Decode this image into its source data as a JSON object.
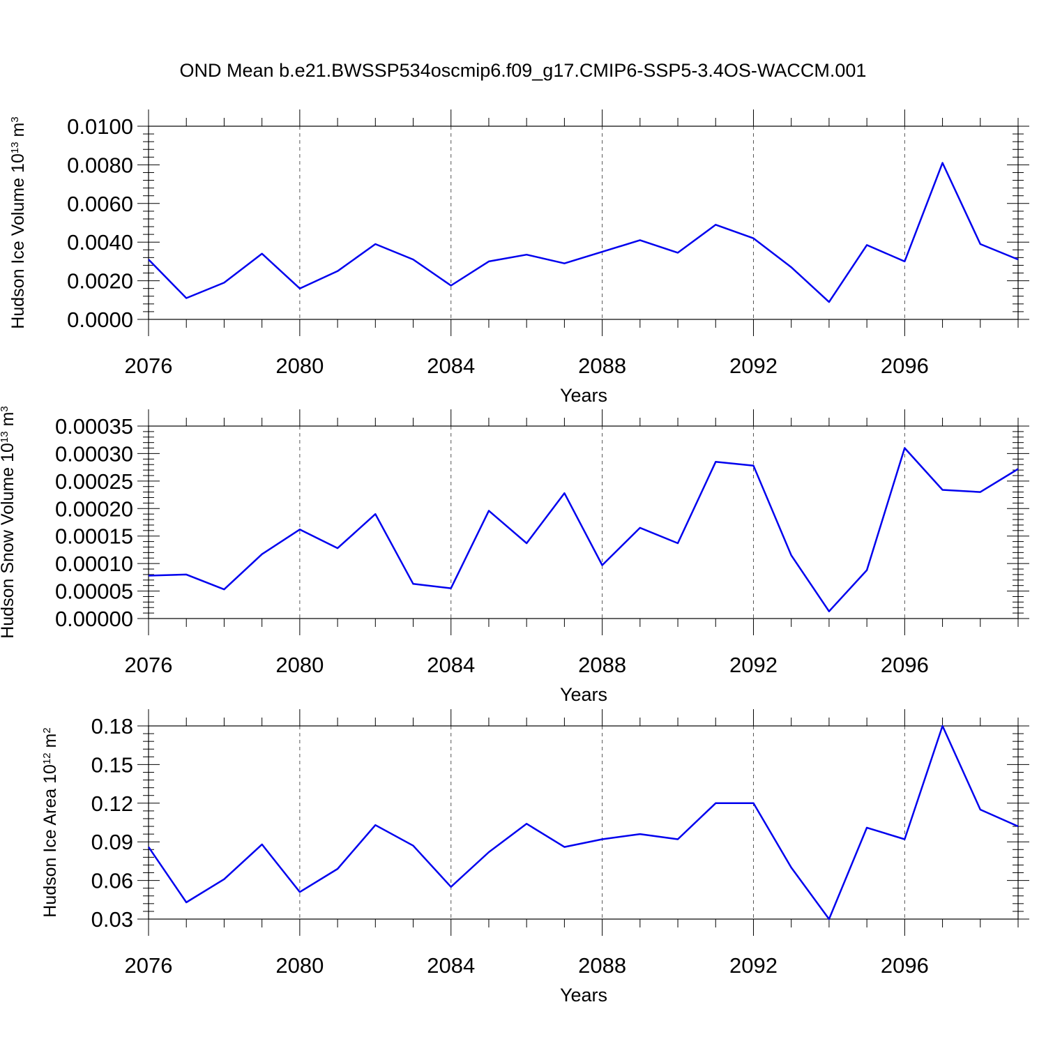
{
  "title": "OND Mean b.e21.BWSSP534oscmip6.f09_g17.CMIP6-SSP5-3.4OS-WACCM.001",
  "colors": {
    "series": "#0000ee",
    "axes": "#000000",
    "grid": "#555555"
  },
  "chart_data": [
    {
      "type": "line",
      "xlabel": "Years",
      "ylabel": "Hudson Ice Volume 10",
      "ylabel_exp": "13",
      "ylabel_unit": " m",
      "ylabel_unit_exp": "3",
      "xlim": [
        2076,
        2099
      ],
      "ylim": [
        0,
        0.01
      ],
      "x_ticks": [
        2076,
        2080,
        2084,
        2088,
        2092,
        2096
      ],
      "x_tick_labels": [
        "2076",
        "2080",
        "2084",
        "2088",
        "2092",
        "2096"
      ],
      "y_ticks": [
        0,
        0.002,
        0.004,
        0.006,
        0.008,
        0.01
      ],
      "y_tick_labels": [
        "0.0000",
        "0.0020",
        "0.0040",
        "0.0060",
        "0.0080",
        "0.0100"
      ],
      "x": [
        2076,
        2077,
        2078,
        2079,
        2080,
        2081,
        2082,
        2083,
        2084,
        2085,
        2086,
        2087,
        2088,
        2089,
        2090,
        2091,
        2092,
        2093,
        2094,
        2095,
        2096,
        2097,
        2098,
        2099
      ],
      "values": [
        0.0031,
        0.0011,
        0.0019,
        0.0034,
        0.0016,
        0.0025,
        0.0039,
        0.0031,
        0.00175,
        0.003,
        0.00335,
        0.0029,
        0.0035,
        0.0041,
        0.00345,
        0.0049,
        0.0042,
        0.0027,
        0.0009,
        0.00385,
        0.003,
        0.0081,
        0.0039,
        0.0031
      ]
    },
    {
      "type": "line",
      "xlabel": "Years",
      "ylabel": "Hudson Snow Volume 10",
      "ylabel_exp": "13",
      "ylabel_unit": " m",
      "ylabel_unit_exp": "3",
      "xlim": [
        2076,
        2099
      ],
      "ylim": [
        0,
        0.00035
      ],
      "x_ticks": [
        2076,
        2080,
        2084,
        2088,
        2092,
        2096
      ],
      "x_tick_labels": [
        "2076",
        "2080",
        "2084",
        "2088",
        "2092",
        "2096"
      ],
      "y_ticks": [
        0,
        5e-05,
        0.0001,
        0.00015,
        0.0002,
        0.00025,
        0.0003,
        0.00035
      ],
      "y_tick_labels": [
        "0.00000",
        "0.00005",
        "0.00010",
        "0.00015",
        "0.00020",
        "0.00025",
        "0.00030",
        "0.00035"
      ],
      "x": [
        2076,
        2077,
        2078,
        2079,
        2080,
        2081,
        2082,
        2083,
        2084,
        2085,
        2086,
        2087,
        2088,
        2089,
        2090,
        2091,
        2092,
        2093,
        2094,
        2095,
        2096,
        2097,
        2098,
        2099
      ],
      "values": [
        7.8e-05,
        8e-05,
        5.3e-05,
        0.000117,
        0.000162,
        0.000128,
        0.00019,
        6.3e-05,
        5.5e-05,
        0.000196,
        0.000137,
        0.000228,
        9.7e-05,
        0.000165,
        0.000137,
        0.000285,
        0.000278,
        0.000115,
        1.3e-05,
        8.8e-05,
        0.00031,
        0.000234,
        0.00023,
        0.000272
      ]
    },
    {
      "type": "line",
      "xlabel": "Years",
      "ylabel": "Hudson Ice Area 10",
      "ylabel_exp": "12",
      "ylabel_unit": " m",
      "ylabel_unit_exp": "2",
      "xlim": [
        2076,
        2099
      ],
      "ylim": [
        0.03,
        0.18
      ],
      "x_ticks": [
        2076,
        2080,
        2084,
        2088,
        2092,
        2096
      ],
      "x_tick_labels": [
        "2076",
        "2080",
        "2084",
        "2088",
        "2092",
        "2096"
      ],
      "y_ticks": [
        0.03,
        0.06,
        0.09,
        0.12,
        0.15,
        0.18
      ],
      "y_tick_labels": [
        "0.03",
        "0.06",
        "0.09",
        "0.12",
        "0.15",
        "0.18"
      ],
      "x": [
        2076,
        2077,
        2078,
        2079,
        2080,
        2081,
        2082,
        2083,
        2084,
        2085,
        2086,
        2087,
        2088,
        2089,
        2090,
        2091,
        2092,
        2093,
        2094,
        2095,
        2096,
        2097,
        2098,
        2099
      ],
      "values": [
        0.086,
        0.043,
        0.061,
        0.088,
        0.051,
        0.069,
        0.103,
        0.087,
        0.055,
        0.082,
        0.104,
        0.086,
        0.092,
        0.096,
        0.092,
        0.12,
        0.12,
        0.07,
        0.03,
        0.101,
        0.092,
        0.18,
        0.115,
        0.102
      ]
    }
  ]
}
